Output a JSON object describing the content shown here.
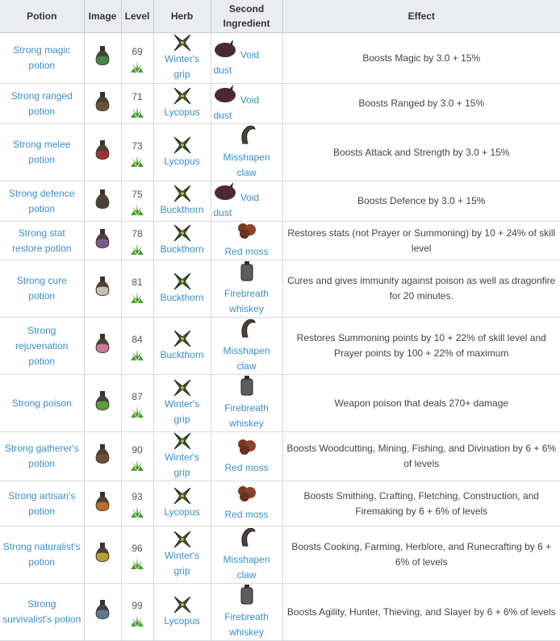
{
  "headers": [
    "Potion",
    "Image",
    "Level",
    "Herb",
    "Second Ingredient",
    "Effect"
  ],
  "rows": [
    {
      "potion": "Strong magic potion",
      "color": "#3e8a4a",
      "level": "69",
      "herb": "Winter's grip",
      "ingredient": "Void dust",
      "ing_icon": "void-dust",
      "effect": "Boosts Magic by 3.0 + 15%"
    },
    {
      "potion": "Strong ranged potion",
      "color": "#6b5334",
      "level": "71",
      "herb": "Lycopus",
      "ingredient": "Void dust",
      "ing_icon": "void-dust",
      "effect": "Boosts Ranged by 3.0 + 15%"
    },
    {
      "potion": "Strong melee potion",
      "color": "#a03030",
      "level": "73",
      "herb": "Lycopus",
      "ingredient": "Misshapen claw",
      "ing_icon": "claw",
      "effect": "Boosts Attack and Strength by 3.0 + 15%"
    },
    {
      "potion": "Strong defence potion",
      "color": "#4a4038",
      "level": "75",
      "herb": "Buckthorn",
      "ingredient": "Void dust",
      "ing_icon": "void-dust",
      "effect": "Boosts Defence by 3.0 + 15%"
    },
    {
      "potion": "Strong stat restore potion",
      "color": "#7a5c8a",
      "level": "78",
      "herb": "Buckthorn",
      "ingredient": "Red moss",
      "ing_icon": "red-moss",
      "effect": "Restores stats (not Prayer or Summoning) by 10 + 24% of skill level"
    },
    {
      "potion": "Strong cure potion",
      "color": "#c8c0b0",
      "level": "81",
      "herb": "Buckthorn",
      "ingredient": "Firebreath whiskey",
      "ing_icon": "whiskey",
      "effect": "Cures and gives immunity against poison as well as dragonfire for 20 minutes."
    },
    {
      "potion": "Strong rejuvenation potion",
      "color": "#c87a9a",
      "level": "84",
      "herb": "Buckthorn",
      "ingredient": "Misshapen claw",
      "ing_icon": "claw",
      "effect": "Restores Summoning points by 10 + 22% of skill level and Prayer points by 100 + 22% of maximum"
    },
    {
      "potion": "Strong poison",
      "color": "#5aa040",
      "level": "87",
      "herb": "Winter's grip",
      "ingredient": "Firebreath whiskey",
      "ing_icon": "whiskey",
      "effect": "Weapon poison that deals 270+ damage"
    },
    {
      "potion": "Strong gatherer's potion",
      "color": "#6e5030",
      "level": "90",
      "herb": "Winter's grip",
      "ingredient": "Red moss",
      "ing_icon": "red-moss",
      "effect": "Boosts Woodcutting, Mining, Fishing, and Divination by 6 + 6% of levels"
    },
    {
      "potion": "Strong artisan's potion",
      "color": "#c06a20",
      "level": "93",
      "herb": "Lycopus",
      "ingredient": "Red moss",
      "ing_icon": "red-moss",
      "effect": "Boosts Smithing, Crafting, Fletching, Construction, and Firemaking by 6 + 6% of levels"
    },
    {
      "potion": "Strong naturalist's potion",
      "color": "#b8a030",
      "level": "96",
      "herb": "Winter's grip",
      "ingredient": "Misshapen claw",
      "ing_icon": "claw",
      "effect": "Boosts Cooking, Farming, Herblore, and Runecrafting by 6 + 6% of levels"
    },
    {
      "potion": "Strong survivalist's potion",
      "color": "#5a7a98",
      "level": "99",
      "herb": "Lycopus",
      "ingredient": "Firebreath whiskey",
      "ing_icon": "whiskey",
      "effect": "Boosts Agility, Hunter, Thieving, and Slayer by 6 + 6% of levels"
    }
  ]
}
